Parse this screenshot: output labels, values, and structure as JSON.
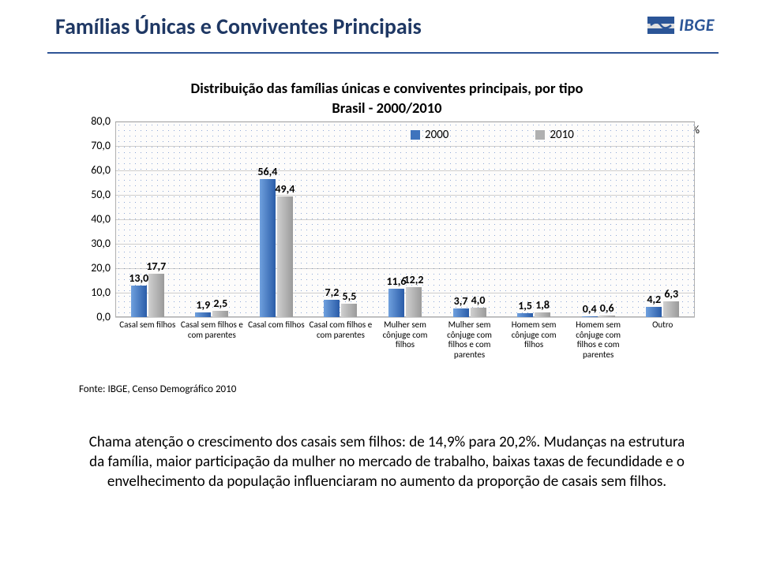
{
  "header": {
    "title": "Famílias Únicas e Conviventes Principais",
    "logo_text": "IBGE"
  },
  "chart": {
    "type": "bar",
    "title_line1": "Distribuição das famílias únicas e conviventes principais, por tipo",
    "title_line2": "Brasil - 2000/2010",
    "pct_symbol": "%",
    "yticks": [
      "0,0",
      "10,0",
      "20,0",
      "30,0",
      "40,0",
      "50,0",
      "60,0",
      "70,0",
      "80,0"
    ],
    "ymax": 80,
    "legend": {
      "series_a_label": "2000",
      "series_b_label": "2010",
      "series_a_color": "#3f73bd",
      "series_b_color": "#b0b0b0"
    },
    "categories": [
      "Casal sem filhos",
      "Casal sem filhos e com parentes",
      "Casal com filhos",
      "Casal com filhos e com parentes",
      "Mulher sem cônjuge com filhos",
      "Mulher sem cônjuge com filhos e com parentes",
      "Homem sem cônjuge com filhos",
      "Homem sem cônjuge com filhos e com parentes",
      "Outro"
    ],
    "series_a": [
      13.0,
      1.9,
      56.4,
      7.2,
      11.6,
      3.7,
      1.5,
      0.4,
      4.2
    ],
    "series_b": [
      17.7,
      2.5,
      49.4,
      5.5,
      12.2,
      4.0,
      1.8,
      0.6,
      6.3
    ],
    "labels_a": [
      "13,0",
      "1,9",
      "56,4",
      "7,2",
      "11,6",
      "3,7",
      "1,5",
      "0,4",
      "4,2"
    ],
    "labels_b": [
      "17,7",
      "2,5",
      "49,4",
      "5,5",
      "12,2",
      "4,0",
      "1,8",
      "0,6",
      "6,3"
    ],
    "bar_colors": {
      "a": "#3f73bd",
      "b": "#b0b0b0"
    },
    "background": "#ffffff",
    "source": "Fonte: IBGE, Censo Demográfico 2010"
  },
  "body": {
    "line1": "Chama atenção o crescimento dos casais sem filhos: de 14,9%  para 20,2%.",
    "line2": "Mudanças na estrutura da família, maior participação da mulher no mercado de trabalho, baixas taxas de fecundidade e o envelhecimento da população influenciaram no aumento da proporção de casais sem filhos."
  }
}
